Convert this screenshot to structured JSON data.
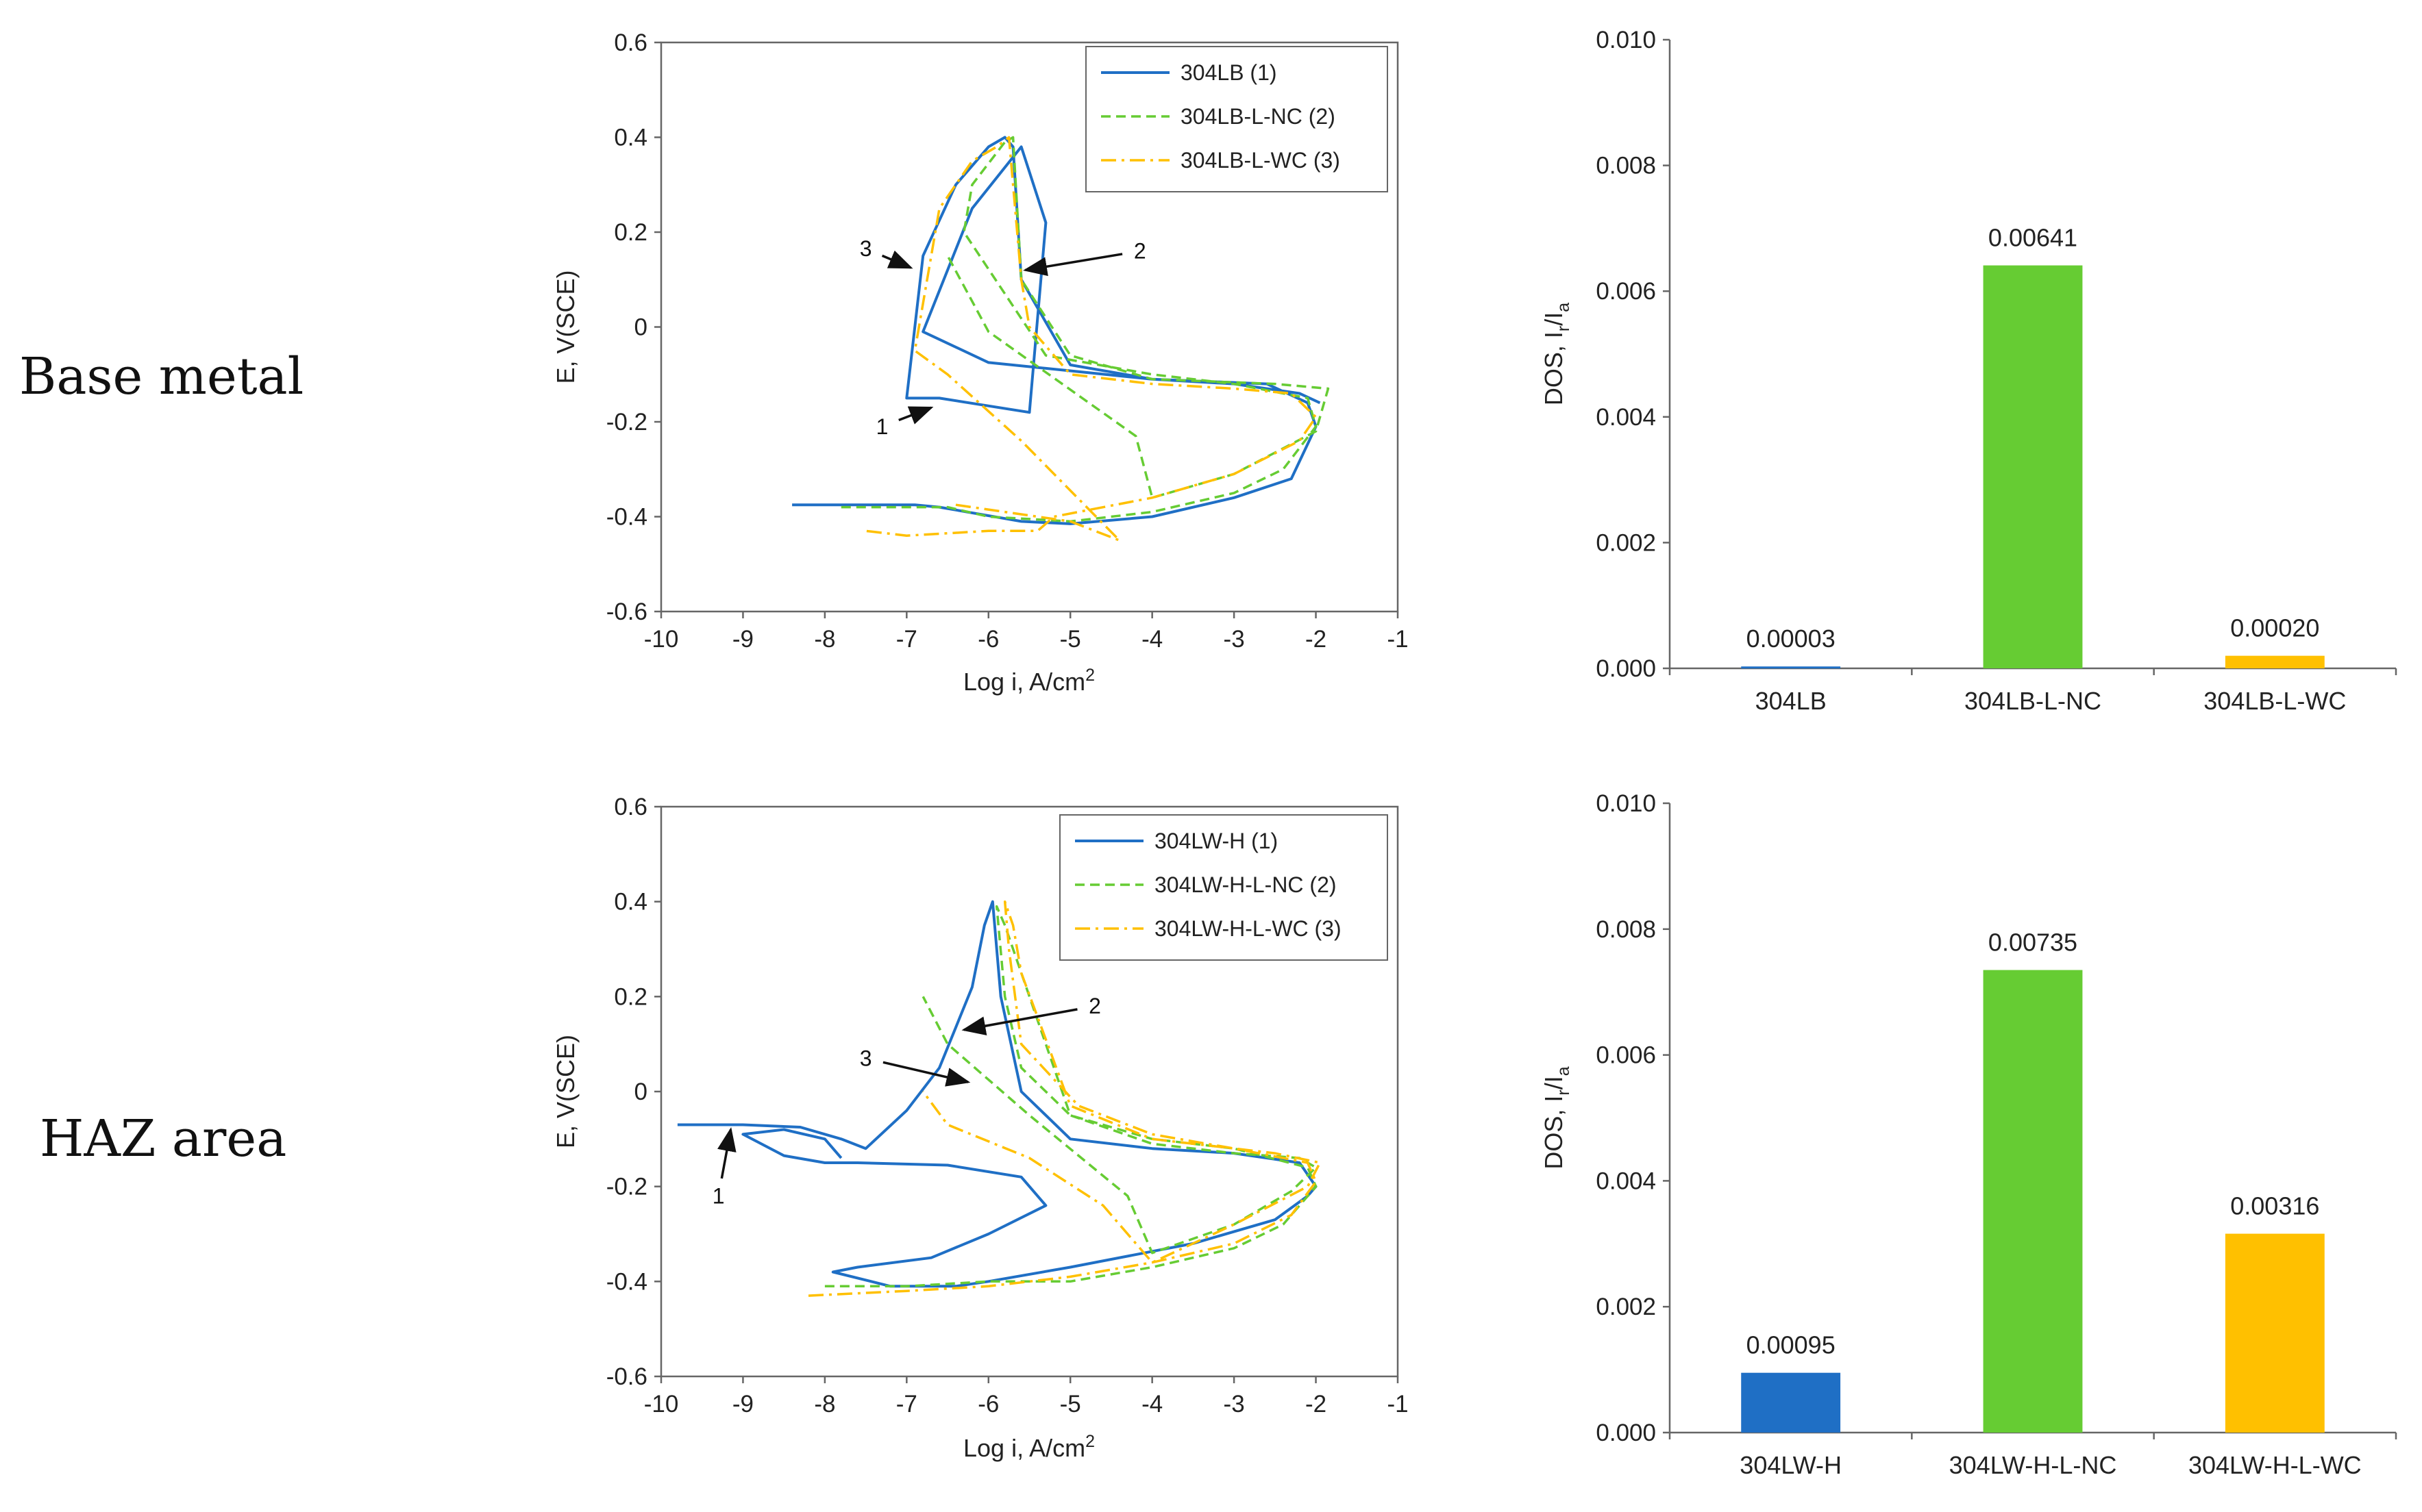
{
  "row_labels": [
    "Base metal",
    "HAZ area"
  ],
  "colors": {
    "blue": "#1f6fc5",
    "green": "#66cc33",
    "orange": "#ffc000",
    "arrow": "#111111",
    "axis": "#666666"
  },
  "chart_data": [
    {
      "type": "line",
      "xlabel_main": "Log i, A/cm",
      "xlabel_sup": "2",
      "ylabel": "E, V(SCE)",
      "xlim": [
        -10,
        -1
      ],
      "ylim": [
        -0.6,
        0.6
      ],
      "xticks": [
        -10,
        -9,
        -8,
        -7,
        -6,
        -5,
        -4,
        -3,
        -2,
        -1
      ],
      "yticks": [
        -0.6,
        -0.4,
        -0.2,
        0,
        0.2,
        0.4,
        0.6
      ],
      "legend_position": "top-right",
      "series": [
        {
          "name": "304LB (1)",
          "color": "#1f6fc5",
          "style": "solid",
          "x": [
            -8.4,
            -6.9,
            -6.6,
            -5.6,
            -5.0,
            -4.0,
            -3.0,
            -2.3,
            -2.0,
            -2.1,
            -2.6,
            -4.0,
            -6.0,
            -6.8,
            -6.2,
            -5.6,
            -5.3,
            -5.5,
            -6.6,
            -7.0,
            -6.8,
            -6.4,
            -6.0,
            -5.8,
            -5.7,
            -5.6,
            -5.0,
            -4.0,
            -3.0,
            -2.2,
            -1.95
          ],
          "y": [
            -0.375,
            -0.375,
            -0.38,
            -0.41,
            -0.415,
            -0.4,
            -0.36,
            -0.32,
            -0.21,
            -0.16,
            -0.12,
            -0.11,
            -0.075,
            -0.01,
            0.25,
            0.38,
            0.22,
            -0.18,
            -0.15,
            -0.15,
            0.15,
            0.3,
            0.38,
            0.4,
            0.38,
            0.1,
            -0.08,
            -0.11,
            -0.12,
            -0.14,
            -0.16
          ]
        },
        {
          "name": "304LB-L-NC (2)",
          "color": "#66cc33",
          "style": "dashed",
          "x": [
            -7.8,
            -6.5,
            -6.0,
            -5.0,
            -4.0,
            -3.0,
            -2.4,
            -2.0,
            -2.1,
            -3.0,
            -4.0,
            -5.3,
            -6.3,
            -6.2,
            -5.8,
            -5.7,
            -5.6,
            -5.0,
            -4.0,
            -2.5,
            -1.85,
            -2.0,
            -3.0,
            -4.0,
            -4.2,
            -6.0,
            -6.5
          ],
          "y": [
            -0.38,
            -0.38,
            -0.4,
            -0.41,
            -0.39,
            -0.35,
            -0.3,
            -0.21,
            -0.15,
            -0.12,
            -0.1,
            -0.06,
            0.2,
            0.3,
            0.39,
            0.4,
            0.1,
            -0.06,
            -0.11,
            -0.12,
            -0.13,
            -0.22,
            -0.31,
            -0.36,
            -0.23,
            -0.01,
            0.15
          ]
        },
        {
          "name": "304LB-L-WC (3)",
          "color": "#ffc000",
          "style": "dashdot",
          "x": [
            -6.4,
            -5.8,
            -5.0,
            -4.4,
            -5.6,
            -6.5,
            -6.9,
            -6.6,
            -6.2,
            -5.9,
            -5.75,
            -5.6,
            -5.5,
            -5.0,
            -4.0,
            -3.0,
            -2.3,
            -2.0,
            -2.2,
            -3.0,
            -4.0,
            -5.2,
            -5.4,
            -6.0,
            -7.0,
            -7.5
          ],
          "y": [
            -0.375,
            -0.39,
            -0.41,
            -0.45,
            -0.24,
            -0.1,
            -0.05,
            0.25,
            0.35,
            0.38,
            0.4,
            0.1,
            0.0,
            -0.1,
            -0.12,
            -0.13,
            -0.14,
            -0.19,
            -0.24,
            -0.31,
            -0.36,
            -0.4,
            -0.43,
            -0.43,
            -0.44,
            -0.43
          ]
        }
      ],
      "annotations": [
        {
          "text": "1",
          "tx": -7.3,
          "ty": -0.21,
          "ax": -6.7,
          "ay": -0.17
        },
        {
          "text": "2",
          "tx": -4.15,
          "ty": 0.16,
          "ax": -5.55,
          "ay": 0.12
        },
        {
          "text": "3",
          "tx": -7.5,
          "ty": 0.165,
          "ax": -6.95,
          "ay": 0.125
        }
      ]
    },
    {
      "type": "bar",
      "ylabel_main": "DOS, I",
      "ylabel_sub1": "r",
      "ylabel_mid": "/I",
      "ylabel_sub2": "a",
      "ylim": [
        0,
        0.01
      ],
      "yticks": [
        "0.000",
        "0.002",
        "0.004",
        "0.006",
        "0.008",
        "0.010"
      ],
      "categories": [
        "304LB",
        "304LB-L-NC",
        "304LB-L-WC"
      ],
      "values": [
        3e-05,
        0.00641,
        0.0002
      ],
      "value_labels": [
        "0.00003",
        "0.00641",
        "0.00020"
      ],
      "colors": [
        "#1f6fc5",
        "#66cc33",
        "#ffc000"
      ]
    },
    {
      "type": "line",
      "xlabel_main": "Log i, A/cm",
      "xlabel_sup": "2",
      "ylabel": "E, V(SCE)",
      "xlim": [
        -10,
        -1
      ],
      "ylim": [
        -0.6,
        0.6
      ],
      "xticks": [
        -10,
        -9,
        -8,
        -7,
        -6,
        -5,
        -4,
        -3,
        -2,
        -1
      ],
      "yticks": [
        -0.6,
        -0.4,
        -0.2,
        0,
        0.2,
        0.4,
        0.6
      ],
      "legend_position": "top-right",
      "series": [
        {
          "name": "304LW-H (1)",
          "color": "#1f6fc5",
          "style": "solid",
          "x": [
            -9.8,
            -9.0,
            -8.3,
            -7.8,
            -7.5,
            -7.0,
            -6.6,
            -6.2,
            -6.05,
            -5.95,
            -5.85,
            -5.6,
            -5.0,
            -4.0,
            -3.0,
            -2.2,
            -2.0,
            -2.1,
            -2.5,
            -3.5,
            -5.0,
            -6.0,
            -6.4,
            -6.8,
            -7.2,
            -7.9,
            -7.6,
            -6.7,
            -6.0,
            -5.3,
            -5.6,
            -6.5,
            -7.6,
            -8.0,
            -8.5,
            -9.0,
            -8.5,
            -8.0,
            -7.8
          ],
          "y": [
            -0.07,
            -0.07,
            -0.075,
            -0.1,
            -0.12,
            -0.04,
            0.05,
            0.22,
            0.35,
            0.4,
            0.2,
            0.0,
            -0.1,
            -0.12,
            -0.13,
            -0.15,
            -0.2,
            -0.22,
            -0.27,
            -0.32,
            -0.37,
            -0.4,
            -0.41,
            -0.41,
            -0.41,
            -0.38,
            -0.37,
            -0.35,
            -0.3,
            -0.24,
            -0.18,
            -0.155,
            -0.15,
            -0.15,
            -0.135,
            -0.09,
            -0.08,
            -0.1,
            -0.14
          ]
        },
        {
          "name": "304LW-H-L-NC (2)",
          "color": "#66cc33",
          "style": "dashed",
          "x": [
            -8.0,
            -7.0,
            -6.0,
            -5.0,
            -4.0,
            -3.0,
            -2.4,
            -2.0,
            -2.1,
            -3.0,
            -4.0,
            -5.0,
            -5.6,
            -5.8,
            -5.9,
            -5.8,
            -5.6,
            -5.0,
            -4.0,
            -3.0,
            -2.2,
            -2.0,
            -2.3,
            -3.0,
            -4.0,
            -4.3,
            -5.5,
            -6.5,
            -6.8
          ],
          "y": [
            -0.41,
            -0.41,
            -0.4,
            -0.4,
            -0.37,
            -0.33,
            -0.28,
            -0.2,
            -0.16,
            -0.12,
            -0.1,
            -0.05,
            0.05,
            0.2,
            0.39,
            0.35,
            0.25,
            -0.05,
            -0.11,
            -0.13,
            -0.14,
            -0.16,
            -0.21,
            -0.28,
            -0.34,
            -0.22,
            -0.05,
            0.1,
            0.2
          ]
        },
        {
          "name": "304LW-H-L-WC (3)",
          "color": "#ffc000",
          "style": "dashdot",
          "x": [
            -8.2,
            -7.0,
            -6.0,
            -5.0,
            -4.0,
            -3.0,
            -2.3,
            -2.0,
            -2.1,
            -3.0,
            -4.0,
            -4.9,
            -5.6,
            -5.75,
            -5.8,
            -5.7,
            -5.6,
            -5.0,
            -4.0,
            -2.5,
            -1.95,
            -2.1,
            -3.0,
            -4.0,
            -4.6,
            -5.5,
            -6.5,
            -6.8
          ],
          "y": [
            -0.43,
            -0.42,
            -0.41,
            -0.39,
            -0.36,
            -0.32,
            -0.26,
            -0.19,
            -0.15,
            -0.12,
            -0.09,
            -0.03,
            0.1,
            0.3,
            0.4,
            0.35,
            0.25,
            -0.03,
            -0.1,
            -0.13,
            -0.15,
            -0.2,
            -0.28,
            -0.36,
            -0.24,
            -0.14,
            -0.07,
            0.0
          ]
        }
      ],
      "annotations": [
        {
          "text": "1",
          "tx": -9.3,
          "ty": -0.22,
          "ax": -9.15,
          "ay": -0.08
        },
        {
          "text": "2",
          "tx": -4.7,
          "ty": 0.18,
          "ax": -6.3,
          "ay": 0.13
        },
        {
          "text": "3",
          "tx": -7.5,
          "ty": 0.07,
          "ax": -6.25,
          "ay": 0.02
        }
      ]
    },
    {
      "type": "bar",
      "ylabel_main": "DOS, I",
      "ylabel_sub1": "r",
      "ylabel_mid": "/I",
      "ylabel_sub2": "a",
      "ylim": [
        0,
        0.01
      ],
      "yticks": [
        "0.000",
        "0.002",
        "0.004",
        "0.006",
        "0.008",
        "0.010"
      ],
      "categories": [
        "304LW-H",
        "304LW-H-L-NC",
        "304LW-H-L-WC"
      ],
      "values": [
        0.00095,
        0.00735,
        0.00316
      ],
      "value_labels": [
        "0.00095",
        "0.00735",
        "0.00316"
      ],
      "colors": [
        "#1f6fc5",
        "#66cc33",
        "#ffc000"
      ]
    }
  ]
}
